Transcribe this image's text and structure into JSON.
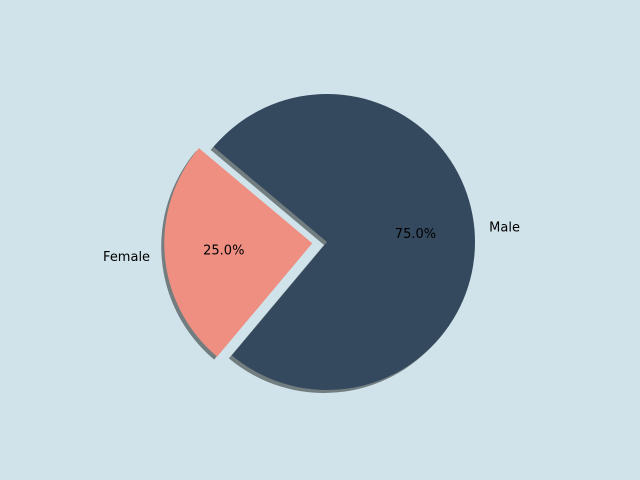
{
  "chart_data": {
    "type": "pie",
    "categories": [
      "Female",
      "Male"
    ],
    "values": [
      25,
      75
    ],
    "value_labels": [
      "25.0%",
      "75.0%"
    ],
    "colors": [
      "#ee8f82",
      "#34495e"
    ],
    "explode": [
      0.1,
      0
    ],
    "shadow": true
  }
}
